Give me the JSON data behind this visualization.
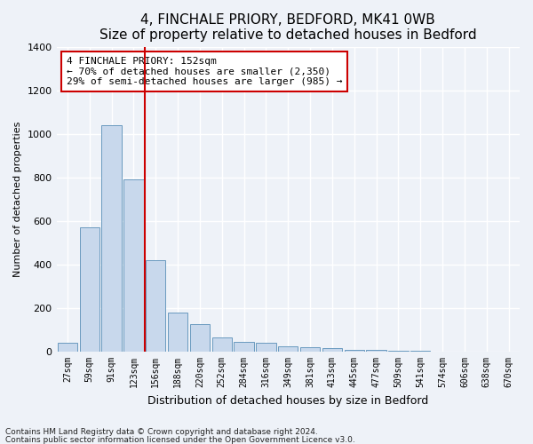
{
  "title1": "4, FINCHALE PRIORY, BEDFORD, MK41 0WB",
  "title2": "Size of property relative to detached houses in Bedford",
  "xlabel": "Distribution of detached houses by size in Bedford",
  "ylabel": "Number of detached properties",
  "categories": [
    "27sqm",
    "59sqm",
    "91sqm",
    "123sqm",
    "156sqm",
    "188sqm",
    "220sqm",
    "252sqm",
    "284sqm",
    "316sqm",
    "349sqm",
    "381sqm",
    "413sqm",
    "445sqm",
    "477sqm",
    "509sqm",
    "541sqm",
    "574sqm",
    "606sqm",
    "638sqm",
    "670sqm"
  ],
  "values": [
    40,
    570,
    1040,
    790,
    420,
    180,
    125,
    65,
    45,
    40,
    25,
    22,
    18,
    10,
    7,
    4,
    3,
    2,
    1,
    1,
    0
  ],
  "bar_color": "#c8d8ec",
  "bar_edge_color": "#6a9abf",
  "vline_x_index": 4,
  "vline_color": "#cc0000",
  "annotation_line1": "4 FINCHALE PRIORY: 152sqm",
  "annotation_line2": "← 70% of detached houses are smaller (2,350)",
  "annotation_line3": "29% of semi-detached houses are larger (985) →",
  "annotation_box_color": "#cc0000",
  "ylim": [
    0,
    1400
  ],
  "yticks": [
    0,
    200,
    400,
    600,
    800,
    1000,
    1200,
    1400
  ],
  "footnote1": "Contains HM Land Registry data © Crown copyright and database right 2024.",
  "footnote2": "Contains public sector information licensed under the Open Government Licence v3.0.",
  "bg_color": "#eef2f8",
  "plot_bg_color": "#eef2f8",
  "title1_fontsize": 11,
  "title2_fontsize": 10,
  "xlabel_fontsize": 9,
  "ylabel_fontsize": 8,
  "tick_fontsize": 7,
  "annotation_fontsize": 8
}
